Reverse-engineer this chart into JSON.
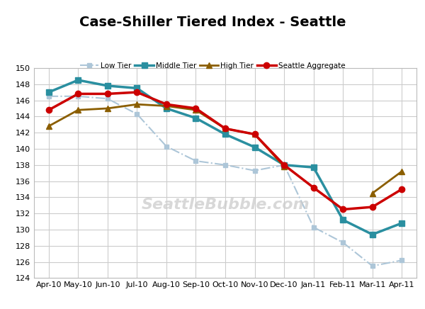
{
  "title": "Case-Shiller Tiered Index - Seattle",
  "watermark": "SeattleBubble.com",
  "x_labels": [
    "Apr-10",
    "May-10",
    "Jun-10",
    "Jul-10",
    "Aug-10",
    "Sep-10",
    "Oct-10",
    "Nov-10",
    "Dec-10",
    "Jan-11",
    "Feb-11",
    "Mar-11",
    "Apr-11"
  ],
  "low_tier": {
    "label": "Low Tier",
    "color": "#adc6d8",
    "linestyle": "-.",
    "marker": "s",
    "markersize": 4,
    "linewidth": 1.5,
    "values": [
      146.5,
      146.5,
      146.2,
      144.3,
      140.3,
      138.5,
      138.0,
      137.3,
      138.0,
      130.3,
      128.4,
      125.5,
      126.2
    ]
  },
  "middle_tier": {
    "label": "Middle Tier",
    "color": "#2a8fa0",
    "linestyle": "-",
    "marker": "s",
    "markersize": 6,
    "linewidth": 2.5,
    "values": [
      147.0,
      148.5,
      147.8,
      147.5,
      145.0,
      143.8,
      141.8,
      140.2,
      138.0,
      137.7,
      131.2,
      129.4,
      130.8
    ]
  },
  "high_tier": {
    "label": "High Tier",
    "color": "#8B5E00",
    "linestyle": "-",
    "marker": "^",
    "markersize": 6,
    "linewidth": 2.0,
    "values": [
      142.8,
      144.8,
      145.0,
      145.5,
      145.3,
      144.8,
      142.5,
      141.8,
      137.8,
      null,
      null,
      134.5,
      137.2
    ]
  },
  "seattle_agg": {
    "label": "Seattle Aggregate",
    "color": "#cc0000",
    "linestyle": "-",
    "marker": "o",
    "markersize": 6,
    "linewidth": 2.5,
    "values": [
      144.8,
      146.8,
      146.8,
      147.0,
      145.5,
      145.0,
      142.5,
      141.8,
      138.0,
      135.2,
      132.5,
      132.8,
      135.0
    ]
  },
  "ylim": [
    124,
    150
  ],
  "yticks": [
    124,
    126,
    128,
    130,
    132,
    134,
    136,
    138,
    140,
    142,
    144,
    146,
    148,
    150
  ],
  "grid_color": "#cccccc",
  "background_color": "#ffffff",
  "fig_facecolor": "#ffffff",
  "title_fontsize": 14,
  "legend_fontsize": 7.5,
  "tick_fontsize": 8
}
